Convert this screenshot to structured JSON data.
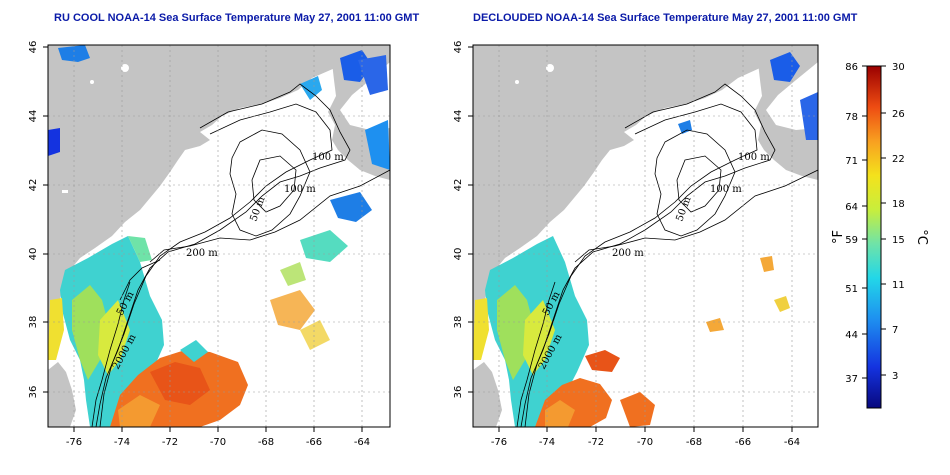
{
  "titles": {
    "left": "RU COOL NOAA-14 Sea Surface Temperature May 27, 2001 11:00 GMT",
    "right": "DECLOUDED NOAA-14 Sea Surface Temperature May 27, 2001 11:00 GMT"
  },
  "axes": {
    "lon_ticks": [
      "-76",
      "-74",
      "-72",
      "-70",
      "-68",
      "-66",
      "-64"
    ],
    "lat_ticks": [
      "46",
      "44",
      "42",
      "40",
      "38",
      "36"
    ]
  },
  "contour_labels": [
    "100 m",
    "100 m",
    "50 m",
    "200 m",
    "50 m",
    "2000 m"
  ],
  "colorbar": {
    "fahrenheit_label": "°F",
    "celsius_label": "°C",
    "fahrenheit_ticks": [
      "86",
      "78",
      "71",
      "64",
      "59",
      "51",
      "44",
      "37"
    ],
    "celsius_ticks": [
      "30",
      "26",
      "22",
      "18",
      "15",
      "11",
      "7",
      "3"
    ]
  },
  "colors": {
    "land": "#c4c4c4",
    "title": "#0a1aa8",
    "cold": "#0a0a8c",
    "warm": "#a00000"
  }
}
